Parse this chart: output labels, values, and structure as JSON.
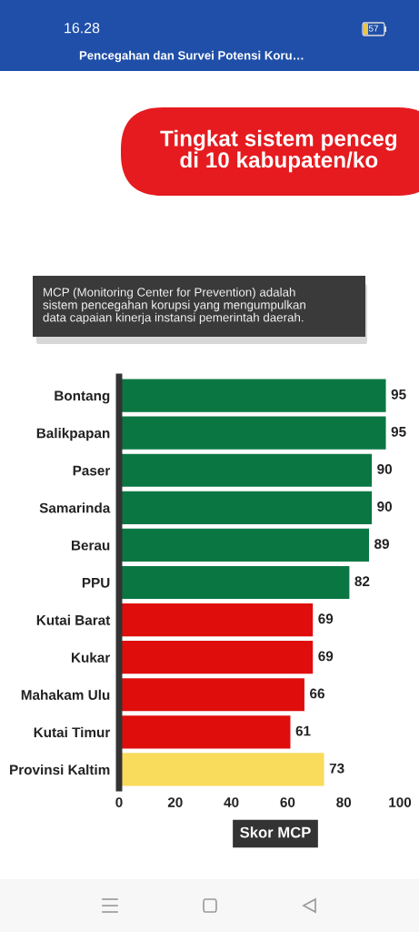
{
  "chart_data": {
    "type": "bar",
    "orientation": "horizontal",
    "title": "Tingkat sistem penceg\ndi 10 kabupaten/ko",
    "subtitle": "MCP (Monitoring Center for Prevention) adalah\nsistem pencegahan korupsi yang mengumpulkan\ndata capaian kinerja instansi pemerintah daerah.",
    "xlabel": "Skor MCP",
    "categories": [
      "Bontang",
      "Balikpapan",
      "Paser",
      "Samarinda",
      "Berau",
      "PPU",
      "Kutai Barat",
      "Kukar",
      "Mahakam Ulu",
      "Kutai Timur",
      "Provinsi Kaltim"
    ],
    "values": [
      95,
      95,
      90,
      90,
      89,
      82,
      69,
      69,
      66,
      61,
      73
    ],
    "colors": [
      "#0a7743",
      "#0a7743",
      "#0a7743",
      "#0a7743",
      "#0a7743",
      "#0a7743",
      "#e00d0d",
      "#e00d0d",
      "#e00d0d",
      "#e00d0d",
      "#f9dc5c"
    ],
    "xlim": [
      0,
      100
    ],
    "xticks": [
      0,
      20,
      40,
      60,
      80,
      100
    ],
    "data_labels": true,
    "annotations": [
      "16.28",
      "Pencegahan dan Survei Potensi Koru…",
      "57"
    ]
  }
}
